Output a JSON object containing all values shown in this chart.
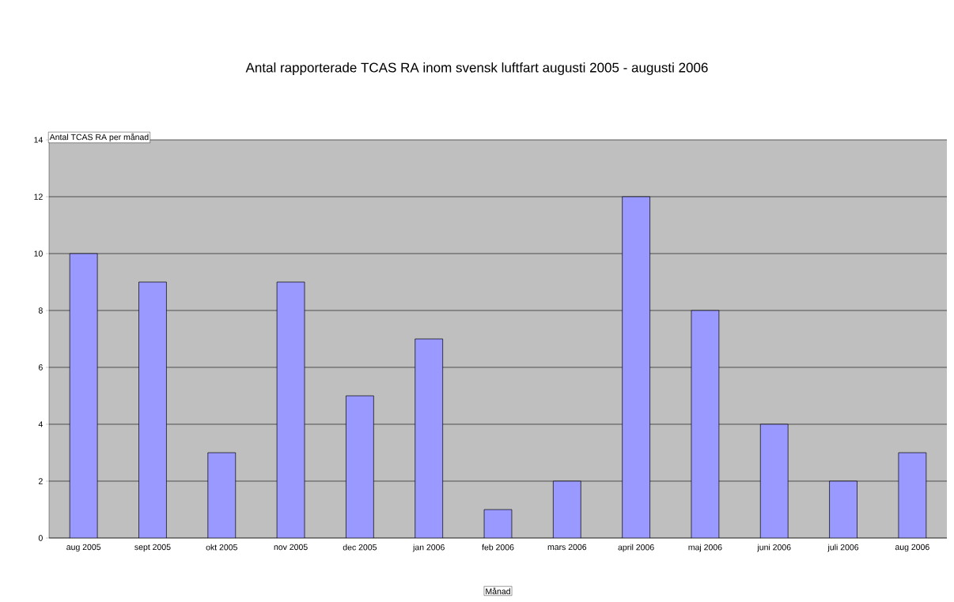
{
  "chart_data": {
    "type": "bar",
    "title": "Antal rapporterade TCAS RA inom svensk luftfart augusti 2005 - augusti 2006",
    "xlabel": "Månad",
    "ylabel": "Antal TCAS RA per månad",
    "categories": [
      "aug 2005",
      "sept 2005",
      "okt 2005",
      "nov 2005",
      "dec 2005",
      "jan 2006",
      "feb 2006",
      "mars 2006",
      "april 2006",
      "maj 2006",
      "juni 2006",
      "juli 2006",
      "aug 2006"
    ],
    "values": [
      10,
      9,
      3,
      9,
      5,
      7,
      1,
      2,
      12,
      8,
      4,
      2,
      3
    ],
    "color": "#9999ff",
    "ylim": [
      0,
      14
    ],
    "yticks": [
      0,
      2,
      4,
      6,
      8,
      10,
      12,
      14
    ],
    "grid": "y"
  }
}
